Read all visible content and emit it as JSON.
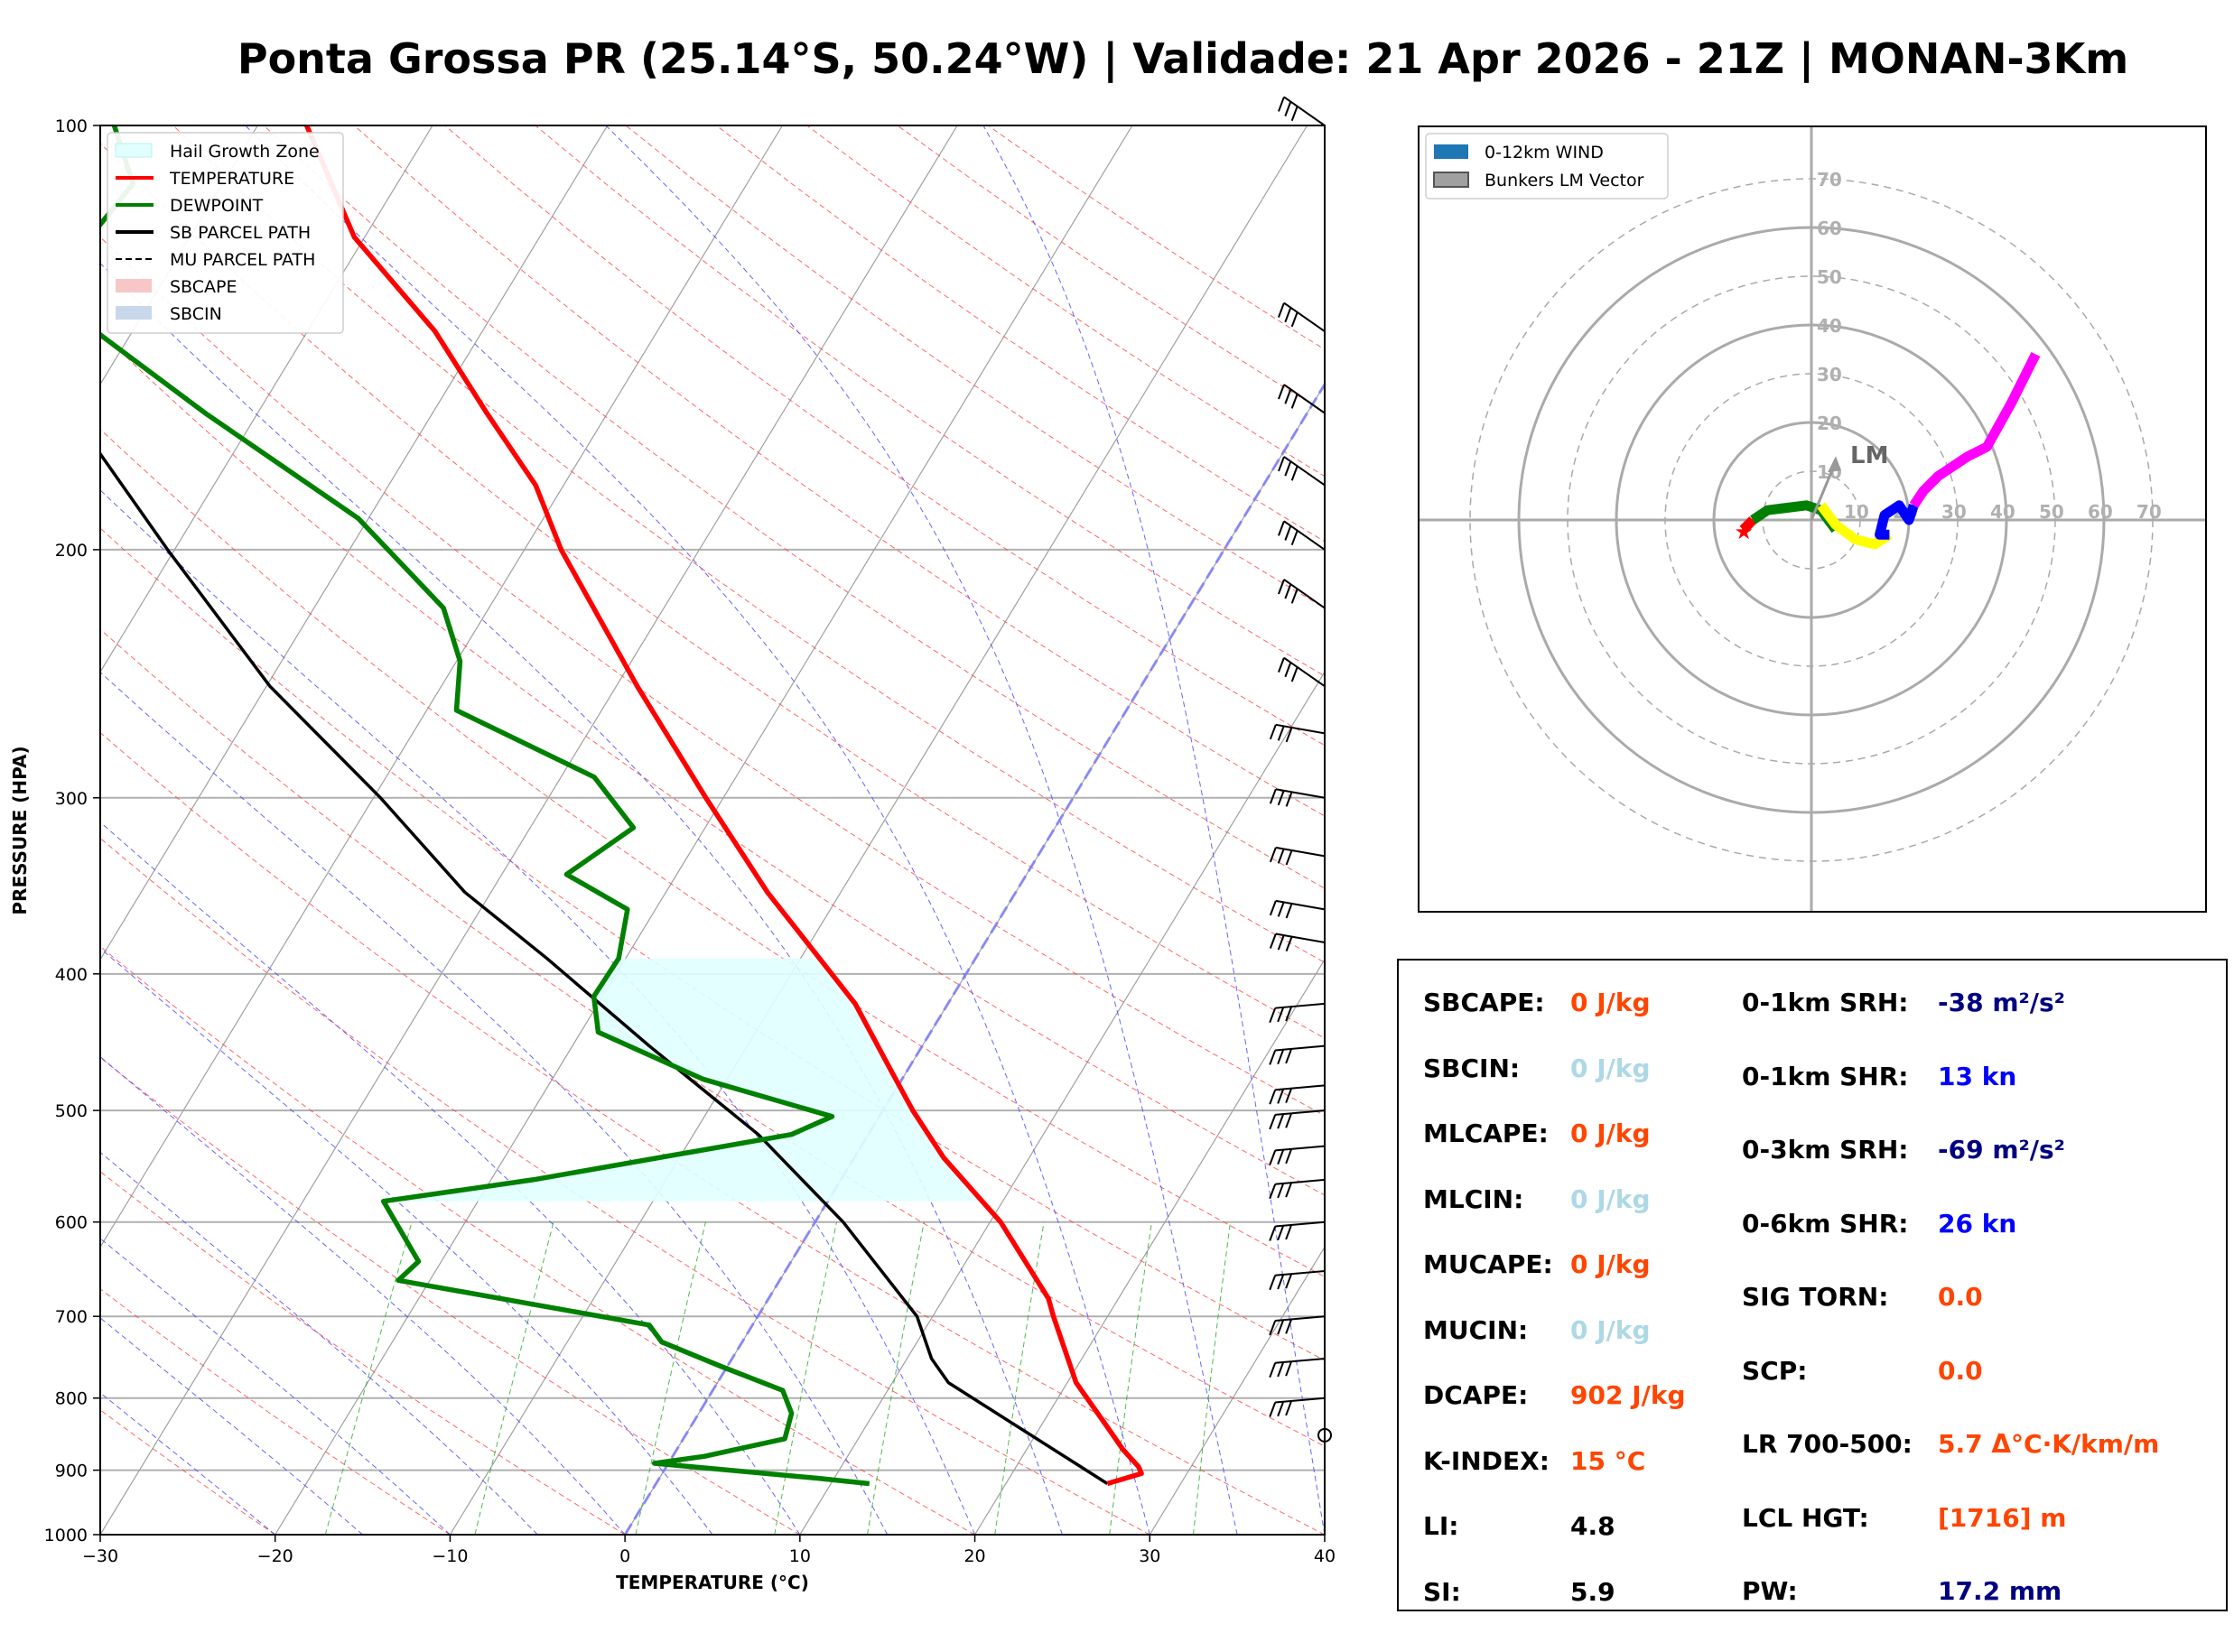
{
  "title": "Ponta Grossa PR (25.14°S, 50.24°W) | Validade: 21 Apr 2026 - 21Z | MONAN-3Km",
  "chart_data": [
    {
      "type": "skew-t",
      "xlabel": "TEMPERATURE (°C)",
      "ylabel": "PRESSURE (HPA)",
      "xlim": [
        -30,
        40
      ],
      "ylim": [
        1000,
        100
      ],
      "y_scale": "log",
      "x_ticks": [
        -30,
        -20,
        -10,
        0,
        10,
        20,
        30,
        40
      ],
      "y_ticks": [
        100,
        200,
        300,
        400,
        500,
        600,
        700,
        800,
        900,
        1000
      ],
      "grid": true,
      "legend_position": "top-left",
      "legend": [
        {
          "label": "Hail Growth Zone",
          "color": "#e0ffff",
          "kind": "patch"
        },
        {
          "label": "TEMPERATURE",
          "color": "#ff0000",
          "kind": "line"
        },
        {
          "label": "DEWPOINT",
          "color": "#008000",
          "kind": "line"
        },
        {
          "label": "SB PARCEL PATH",
          "color": "#000000",
          "kind": "line"
        },
        {
          "label": "MU PARCEL PATH",
          "color": "#000000",
          "kind": "dashed"
        },
        {
          "label": "SBCAPE",
          "color": "#f7c7c7",
          "kind": "patch"
        },
        {
          "label": "SBCIN",
          "color": "#c8d8ea",
          "kind": "patch"
        }
      ],
      "hail_growth_zone_hpa": [
        390,
        580
      ],
      "temperature": [
        {
          "p": 920,
          "t": 25.8
        },
        {
          "p": 905,
          "t": 27.4
        },
        {
          "p": 895,
          "t": 27.0
        },
        {
          "p": 870,
          "t": 25.5
        },
        {
          "p": 840,
          "t": 23.9
        },
        {
          "p": 780,
          "t": 20.5
        },
        {
          "p": 700,
          "t": 16.9
        },
        {
          "p": 680,
          "t": 16.0
        },
        {
          "p": 600,
          "t": 10.6
        },
        {
          "p": 540,
          "t": 5.1
        },
        {
          "p": 500,
          "t": 1.7
        },
        {
          "p": 470,
          "t": -0.8
        },
        {
          "p": 420,
          "t": -5.3
        },
        {
          "p": 350,
          "t": -14.2
        },
        {
          "p": 300,
          "t": -21.0
        },
        {
          "p": 250,
          "t": -28.8
        },
        {
          "p": 200,
          "t": -37.9
        },
        {
          "p": 180,
          "t": -41.6
        },
        {
          "p": 160,
          "t": -46.9
        },
        {
          "p": 140,
          "t": -52.7
        },
        {
          "p": 120,
          "t": -60.6
        },
        {
          "p": 100,
          "t": -67.2
        }
      ],
      "dewpoint": [
        {
          "p": 920,
          "t": 12.2
        },
        {
          "p": 912,
          "t": 9.1
        },
        {
          "p": 890,
          "t": -0.8
        },
        {
          "p": 880,
          "t": 1.8
        },
        {
          "p": 855,
          "t": 5.8
        },
        {
          "p": 820,
          "t": 5.3
        },
        {
          "p": 790,
          "t": 4.0
        },
        {
          "p": 760,
          "t": -0.3
        },
        {
          "p": 730,
          "t": -4.6
        },
        {
          "p": 710,
          "t": -5.9
        },
        {
          "p": 660,
          "t": -21.8
        },
        {
          "p": 640,
          "t": -21.3
        },
        {
          "p": 610,
          "t": -23.3
        },
        {
          "p": 580,
          "t": -25.4
        },
        {
          "p": 560,
          "t": -17.6
        },
        {
          "p": 520,
          "t": -4.4
        },
        {
          "p": 505,
          "t": -2.7
        },
        {
          "p": 475,
          "t": -11.4
        },
        {
          "p": 440,
          "t": -19.0
        },
        {
          "p": 415,
          "t": -20.5
        },
        {
          "p": 390,
          "t": -20.4
        },
        {
          "p": 360,
          "t": -21.6
        },
        {
          "p": 340,
          "t": -26.3
        },
        {
          "p": 315,
          "t": -24.1
        },
        {
          "p": 290,
          "t": -28.1
        },
        {
          "p": 260,
          "t": -38.3
        },
        {
          "p": 240,
          "t": -39.8
        },
        {
          "p": 220,
          "t": -42.6
        },
        {
          "p": 190,
          "t": -50.6
        },
        {
          "p": 160,
          "t": -63.0
        },
        {
          "p": 140,
          "t": -72.1
        },
        {
          "p": 120,
          "t": -75.7
        },
        {
          "p": 110,
          "t": -75.1
        },
        {
          "p": 100,
          "t": -78.2
        }
      ],
      "sb_parcel_path": [
        {
          "p": 920,
          "t": 25.8
        },
        {
          "p": 780,
          "t": 13.2
        },
        {
          "p": 750,
          "t": 11.4
        },
        {
          "p": 700,
          "t": 9.1
        },
        {
          "p": 600,
          "t": 1.6
        },
        {
          "p": 520,
          "t": -6.3
        },
        {
          "p": 450,
          "t": -15.6
        },
        {
          "p": 390,
          "t": -24.5
        },
        {
          "p": 350,
          "t": -31.5
        },
        {
          "p": 300,
          "t": -39.6
        },
        {
          "p": 250,
          "t": -49.8
        },
        {
          "p": 200,
          "t": -60.4
        },
        {
          "p": 150,
          "t": -73.6
        },
        {
          "p": 120,
          "t": -81.8
        },
        {
          "p": 100,
          "t": -86.5
        }
      ],
      "wind_barbs_hpa": [
        100,
        140,
        160,
        180,
        200,
        220,
        250,
        270,
        300,
        330,
        360,
        380,
        420,
        450,
        480,
        500,
        530,
        560,
        600,
        650,
        700,
        750,
        800
      ]
    },
    {
      "type": "hodograph",
      "rings": [
        10,
        20,
        30,
        40,
        50,
        60,
        70
      ],
      "legend_position": "top-left",
      "legend": [
        {
          "label": "0-12km WIND",
          "color": "#1f77b4"
        },
        {
          "label": "Bunkers LM Vector",
          "color": "#a0a0a0"
        }
      ],
      "lm_label": "LM",
      "bunkers_lm_vector": {
        "u": 5,
        "v": 12
      },
      "segments": [
        {
          "color": "#ff0000",
          "points": [
            {
              "u": -14,
              "v": -2
            },
            {
              "u": -12,
              "v": 0
            }
          ]
        },
        {
          "color": "#008000",
          "points": [
            {
              "u": -12,
              "v": 0
            },
            {
              "u": -9,
              "v": 2
            },
            {
              "u": -5,
              "v": 2.5
            },
            {
              "u": -1,
              "v": 3
            },
            {
              "u": 2,
              "v": 2
            },
            {
              "u": 5,
              "v": -2
            }
          ]
        },
        {
          "color": "#ffff00",
          "points": [
            {
              "u": 2,
              "v": 3
            },
            {
              "u": 5,
              "v": -1
            },
            {
              "u": 9,
              "v": -4
            },
            {
              "u": 13,
              "v": -5
            },
            {
              "u": 16,
              "v": -3
            }
          ]
        },
        {
          "color": "#0000ff",
          "points": [
            {
              "u": 16,
              "v": -3
            },
            {
              "u": 14,
              "v": -3
            },
            {
              "u": 15,
              "v": 1
            },
            {
              "u": 18,
              "v": 3
            },
            {
              "u": 20,
              "v": 0
            },
            {
              "u": 21,
              "v": 3
            }
          ]
        },
        {
          "color": "#ff00ff",
          "points": [
            {
              "u": 21,
              "v": 3
            },
            {
              "u": 23,
              "v": 6
            },
            {
              "u": 26,
              "v": 9
            },
            {
              "u": 32,
              "v": 13
            },
            {
              "u": 36,
              "v": 15
            },
            {
              "u": 41,
              "v": 24
            },
            {
              "u": 46,
              "v": 34
            }
          ]
        }
      ]
    }
  ],
  "stats": {
    "left": [
      {
        "label": "SBCAPE:",
        "value": "0 J/kg",
        "color": "#ff4500"
      },
      {
        "label": "SBCIN:",
        "value": "0 J/kg",
        "color": "#add8e6"
      },
      {
        "label": "MLCAPE:",
        "value": "0 J/kg",
        "color": "#ff4500"
      },
      {
        "label": "MLCIN:",
        "value": "0 J/kg",
        "color": "#add8e6"
      },
      {
        "label": "MUCAPE:",
        "value": "0 J/kg",
        "color": "#ff4500"
      },
      {
        "label": "MUCIN:",
        "value": "0 J/kg",
        "color": "#add8e6"
      },
      {
        "label": "DCAPE:",
        "value": "902 J/kg",
        "color": "#ff4500"
      },
      {
        "label": "K-INDEX:",
        "value": "15 °C",
        "color": "#ff4500"
      },
      {
        "label": "LI:",
        "value": "4.8",
        "color": "#000000"
      },
      {
        "label": "SI:",
        "value": "5.9",
        "color": "#000000"
      }
    ],
    "right": [
      {
        "label": "0-1km SRH:",
        "value": "-38 m²/s²",
        "color": "#000080"
      },
      {
        "label": "0-1km SHR:",
        "value": "13 kn",
        "color": "#0000ff"
      },
      {
        "label": "0-3km SRH:",
        "value": "-69 m²/s²",
        "color": "#000080"
      },
      {
        "label": "0-6km SHR:",
        "value": "26 kn",
        "color": "#0000ff"
      },
      {
        "label": "SIG TORN:",
        "value": "0.0",
        "color": "#ff4500"
      },
      {
        "label": "SCP:",
        "value": "0.0",
        "color": "#ff4500"
      },
      {
        "label": "LR 700-500:",
        "value": "5.7 Δ°C·K/km/m",
        "color": "#ff4500"
      },
      {
        "label": "LCL HGT:",
        "value": "[1716] m",
        "color": "#ff4500"
      },
      {
        "label": "PW:",
        "value": "17.2 mm",
        "color": "#000080"
      }
    ]
  }
}
